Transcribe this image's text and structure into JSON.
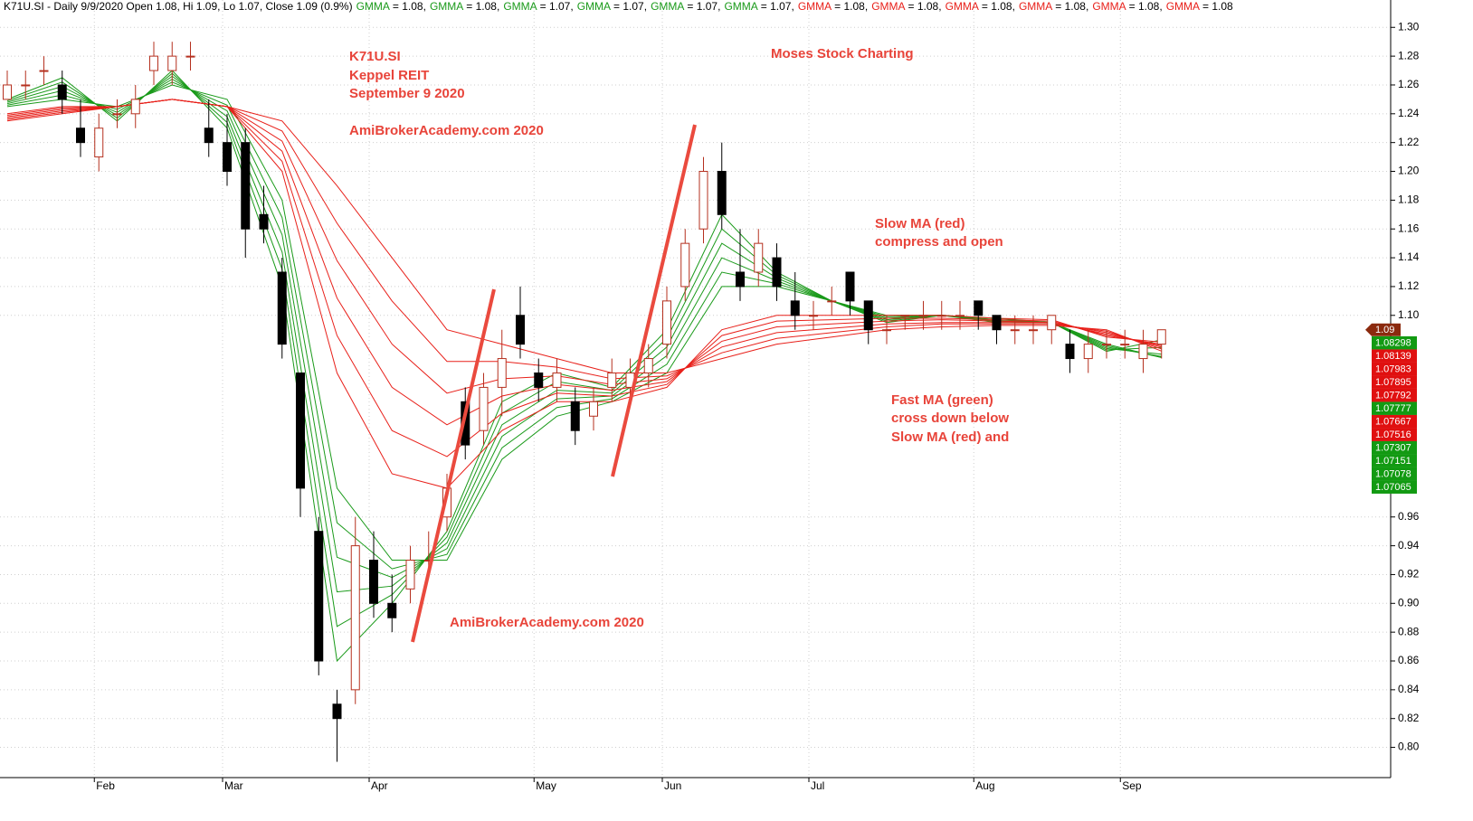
{
  "chart_data": {
    "type": "candlestick",
    "title": "K71U.SI - Daily 9/9/2020 Open 1.08, Hi 1.09, Lo 1.07, Close 1.09 (0.9%)",
    "annotations": [
      "K71U.SI",
      "Keppel REIT",
      "September 9 2020",
      "AmiBrokerAcademy.com  2020",
      "Moses Stock Charting",
      "Slow MA (red)",
      "compress and open",
      "Fast MA (green)",
      "cross down below",
      "Slow MA (red) and",
      "AmiBrokerAcademy.com 2020"
    ],
    "annotation_color": "#e8443a",
    "up_color": "#b5301f",
    "down_color": "#000000",
    "grid": true,
    "ylim": [
      0.779,
      1.319
    ],
    "yticks": [
      {
        "value": 0.8,
        "label": "0.80"
      },
      {
        "value": 0.82,
        "label": "0.82"
      },
      {
        "value": 0.84,
        "label": "0.84"
      },
      {
        "value": 0.86,
        "label": "0.86"
      },
      {
        "value": 0.88,
        "label": "0.88"
      },
      {
        "value": 0.9,
        "label": "0.90"
      },
      {
        "value": 0.92,
        "label": "0.92"
      },
      {
        "value": 0.94,
        "label": "0.94"
      },
      {
        "value": 0.96,
        "label": "0.96"
      },
      {
        "value": 1.1,
        "label": "1.10"
      },
      {
        "value": 1.12,
        "label": "1.12"
      },
      {
        "value": 1.14,
        "label": "1.14"
      },
      {
        "value": 1.16,
        "label": "1.16"
      },
      {
        "value": 1.18,
        "label": "1.18"
      },
      {
        "value": 1.2,
        "label": "1.20"
      },
      {
        "value": 1.22,
        "label": "1.22"
      },
      {
        "value": 1.24,
        "label": "1.24"
      },
      {
        "value": 1.26,
        "label": "1.26"
      },
      {
        "value": 1.28,
        "label": "1.28"
      },
      {
        "value": 1.3,
        "label": "1.30"
      }
    ],
    "categories": [
      null,
      null,
      null,
      null,
      null,
      "Feb",
      null,
      null,
      null,
      null,
      null,
      null,
      "Mar",
      null,
      null,
      null,
      null,
      null,
      null,
      null,
      "Apr",
      null,
      null,
      null,
      null,
      null,
      null,
      null,
      null,
      "May",
      null,
      null,
      null,
      null,
      null,
      null,
      "Jun",
      null,
      null,
      null,
      null,
      null,
      null,
      null,
      "Jul",
      null,
      null,
      null,
      null,
      null,
      null,
      null,
      null,
      "Aug",
      null,
      null,
      null,
      null,
      null,
      null,
      null,
      "Sep",
      null,
      null
    ],
    "ohlc": [
      [
        1.25,
        1.27,
        1.25,
        1.26
      ],
      [
        1.26,
        1.27,
        1.25,
        1.26
      ],
      [
        1.27,
        1.28,
        1.26,
        1.27
      ],
      [
        1.26,
        1.27,
        1.24,
        1.25
      ],
      [
        1.23,
        1.25,
        1.21,
        1.22
      ],
      [
        1.21,
        1.24,
        1.2,
        1.23
      ],
      [
        1.24,
        1.25,
        1.23,
        1.24
      ],
      [
        1.24,
        1.26,
        1.23,
        1.25
      ],
      [
        1.27,
        1.29,
        1.26,
        1.28
      ],
      [
        1.27,
        1.29,
        1.26,
        1.28
      ],
      [
        1.28,
        1.29,
        1.27,
        1.28
      ],
      [
        1.23,
        1.25,
        1.21,
        1.22
      ],
      [
        1.22,
        1.24,
        1.19,
        1.2
      ],
      [
        1.22,
        1.23,
        1.14,
        1.16
      ],
      [
        1.17,
        1.19,
        1.15,
        1.16
      ],
      [
        1.13,
        1.14,
        1.07,
        1.08
      ],
      [
        1.06,
        1.06,
        0.96,
        0.98
      ],
      [
        0.95,
        0.96,
        0.85,
        0.86
      ],
      [
        0.83,
        0.84,
        0.79,
        0.82
      ],
      [
        0.84,
        0.96,
        0.83,
        0.94
      ],
      [
        0.93,
        0.95,
        0.89,
        0.9
      ],
      [
        0.9,
        0.92,
        0.88,
        0.89
      ],
      [
        0.91,
        0.94,
        0.9,
        0.93
      ],
      [
        0.93,
        0.95,
        0.92,
        0.93
      ],
      [
        0.96,
        0.99,
        0.95,
        0.98
      ],
      [
        1.04,
        1.05,
        1.0,
        1.01
      ],
      [
        1.02,
        1.06,
        1.01,
        1.05
      ],
      [
        1.05,
        1.09,
        1.03,
        1.07
      ],
      [
        1.1,
        1.12,
        1.07,
        1.08
      ],
      [
        1.06,
        1.07,
        1.04,
        1.05
      ],
      [
        1.05,
        1.07,
        1.04,
        1.06
      ],
      [
        1.04,
        1.05,
        1.01,
        1.02
      ],
      [
        1.03,
        1.05,
        1.02,
        1.04
      ],
      [
        1.05,
        1.07,
        1.04,
        1.06
      ],
      [
        1.05,
        1.07,
        1.04,
        1.06
      ],
      [
        1.06,
        1.08,
        1.05,
        1.07
      ],
      [
        1.08,
        1.12,
        1.07,
        1.11
      ],
      [
        1.12,
        1.16,
        1.11,
        1.15
      ],
      [
        1.16,
        1.21,
        1.15,
        1.2
      ],
      [
        1.2,
        1.22,
        1.16,
        1.17
      ],
      [
        1.13,
        1.16,
        1.11,
        1.12
      ],
      [
        1.13,
        1.16,
        1.12,
        1.15
      ],
      [
        1.14,
        1.15,
        1.11,
        1.12
      ],
      [
        1.11,
        1.13,
        1.09,
        1.1
      ],
      [
        1.1,
        1.11,
        1.09,
        1.1
      ],
      [
        1.11,
        1.12,
        1.1,
        1.11
      ],
      [
        1.13,
        1.13,
        1.1,
        1.11
      ],
      [
        1.11,
        1.11,
        1.08,
        1.09
      ],
      [
        1.09,
        1.1,
        1.08,
        1.09
      ],
      [
        1.1,
        1.1,
        1.09,
        1.1
      ],
      [
        1.1,
        1.11,
        1.09,
        1.1
      ],
      [
        1.1,
        1.11,
        1.09,
        1.1
      ],
      [
        1.1,
        1.11,
        1.09,
        1.1
      ],
      [
        1.11,
        1.11,
        1.09,
        1.1
      ],
      [
        1.1,
        1.1,
        1.08,
        1.09
      ],
      [
        1.09,
        1.1,
        1.08,
        1.09
      ],
      [
        1.09,
        1.1,
        1.08,
        1.09
      ],
      [
        1.09,
        1.1,
        1.08,
        1.1
      ],
      [
        1.08,
        1.09,
        1.06,
        1.07
      ],
      [
        1.07,
        1.09,
        1.06,
        1.08
      ],
      [
        1.08,
        1.09,
        1.07,
        1.08
      ],
      [
        1.08,
        1.09,
        1.07,
        1.08
      ],
      [
        1.07,
        1.09,
        1.06,
        1.08
      ],
      [
        1.08,
        1.09,
        1.07,
        1.09
      ]
    ],
    "series": [
      {
        "name": "GMMA",
        "legend_label": "= 1.08,",
        "color": "#1a9a1a",
        "x": [
          0,
          3,
          6,
          9,
          12,
          15,
          18,
          21,
          24,
          27,
          30,
          33,
          36,
          39,
          42,
          45,
          48,
          51,
          54,
          57,
          60,
          63
        ],
        "values": [
          1.25,
          1.265,
          1.235,
          1.27,
          1.23,
          1.12,
          0.86,
          0.9,
          0.95,
          1.04,
          1.06,
          1.05,
          1.09,
          1.17,
          1.13,
          1.11,
          1.095,
          1.1,
          1.095,
          1.095,
          1.075,
          1.08298
        ]
      },
      {
        "name": "GMMA",
        "legend_label": "= 1.08,",
        "color": "#1a9a1a",
        "x": [
          0,
          3,
          6,
          9,
          12,
          15,
          18,
          21,
          24,
          27,
          30,
          33,
          36,
          39,
          42,
          45,
          48,
          51,
          54,
          57,
          60,
          63
        ],
        "values": [
          1.249,
          1.262,
          1.237,
          1.268,
          1.234,
          1.132,
          0.884,
          0.906,
          0.946,
          1.032,
          1.054,
          1.048,
          1.084,
          1.16,
          1.128,
          1.11,
          1.096,
          1.1,
          1.096,
          1.095,
          1.076,
          1.07777
        ]
      },
      {
        "name": "GMMA",
        "legend_label": "= 1.07,",
        "color": "#1a9a1a",
        "x": [
          0,
          3,
          6,
          9,
          12,
          15,
          18,
          21,
          24,
          27,
          30,
          33,
          36,
          39,
          42,
          45,
          48,
          51,
          54,
          57,
          60,
          63
        ],
        "values": [
          1.248,
          1.259,
          1.239,
          1.266,
          1.238,
          1.144,
          0.908,
          0.912,
          0.942,
          1.024,
          1.048,
          1.046,
          1.078,
          1.15,
          1.126,
          1.11,
          1.097,
          1.1,
          1.096,
          1.095,
          1.077,
          1.07307
        ]
      },
      {
        "name": "GMMA",
        "legend_label": "= 1.07,",
        "color": "#1a9a1a",
        "x": [
          0,
          3,
          6,
          9,
          12,
          15,
          18,
          21,
          24,
          27,
          30,
          33,
          36,
          39,
          42,
          45,
          48,
          51,
          54,
          57,
          60,
          63
        ],
        "values": [
          1.247,
          1.256,
          1.241,
          1.264,
          1.242,
          1.156,
          0.932,
          0.918,
          0.938,
          1.016,
          1.042,
          1.044,
          1.072,
          1.14,
          1.124,
          1.11,
          1.098,
          1.1,
          1.097,
          1.095,
          1.078,
          1.07151
        ]
      },
      {
        "name": "GMMA",
        "legend_label": "= 1.07,",
        "color": "#1a9a1a",
        "x": [
          0,
          3,
          6,
          9,
          12,
          15,
          18,
          21,
          24,
          27,
          30,
          33,
          36,
          39,
          42,
          45,
          48,
          51,
          54,
          57,
          60,
          63
        ],
        "values": [
          1.246,
          1.253,
          1.243,
          1.262,
          1.246,
          1.168,
          0.956,
          0.924,
          0.934,
          1.008,
          1.036,
          1.042,
          1.066,
          1.13,
          1.122,
          1.11,
          1.099,
          1.1,
          1.097,
          1.095,
          1.079,
          1.07078
        ]
      },
      {
        "name": "GMMA",
        "legend_label": "= 1.07,",
        "color": "#1a9a1a",
        "x": [
          0,
          3,
          6,
          9,
          12,
          15,
          18,
          21,
          24,
          27,
          30,
          33,
          36,
          39,
          42,
          45,
          48,
          51,
          54,
          57,
          60,
          63
        ],
        "values": [
          1.245,
          1.25,
          1.245,
          1.26,
          1.25,
          1.18,
          0.98,
          0.93,
          0.93,
          1.0,
          1.03,
          1.04,
          1.06,
          1.12,
          1.12,
          1.11,
          1.1,
          1.1,
          1.098,
          1.095,
          1.08,
          1.07065
        ]
      },
      {
        "name": "GMMA",
        "legend_label": "= 1.08,",
        "color": "#e8201a",
        "x": [
          0,
          3,
          6,
          9,
          12,
          15,
          18,
          21,
          24,
          27,
          30,
          33,
          36,
          39,
          42,
          45,
          48,
          51,
          54,
          57,
          60,
          63
        ],
        "values": [
          1.24,
          1.245,
          1.245,
          1.25,
          1.245,
          1.2,
          1.06,
          0.99,
          0.98,
          1.02,
          1.04,
          1.04,
          1.05,
          1.09,
          1.1,
          1.1,
          1.1,
          1.1,
          1.098,
          1.097,
          1.085,
          1.08139
        ]
      },
      {
        "name": "GMMA",
        "legend_label": "= 1.08,",
        "color": "#e8201a",
        "x": [
          0,
          3,
          6,
          9,
          12,
          15,
          18,
          21,
          24,
          27,
          30,
          33,
          36,
          39,
          42,
          45,
          48,
          51,
          54,
          57,
          60,
          63
        ],
        "values": [
          1.239,
          1.244,
          1.245,
          1.25,
          1.245,
          1.207,
          1.086,
          1.02,
          1.002,
          1.032,
          1.046,
          1.044,
          1.052,
          1.086,
          1.096,
          1.097,
          1.098,
          1.098,
          1.097,
          1.096,
          1.086,
          1.07983
        ]
      },
      {
        "name": "GMMA",
        "legend_label": "= 1.08,",
        "color": "#e8201a",
        "x": [
          0,
          3,
          6,
          9,
          12,
          15,
          18,
          21,
          24,
          27,
          30,
          33,
          36,
          39,
          42,
          45,
          48,
          51,
          54,
          57,
          60,
          63
        ],
        "values": [
          1.238,
          1.243,
          1.245,
          1.25,
          1.245,
          1.214,
          1.112,
          1.05,
          1.024,
          1.044,
          1.052,
          1.048,
          1.054,
          1.082,
          1.092,
          1.094,
          1.096,
          1.097,
          1.096,
          1.095,
          1.087,
          1.07895
        ]
      },
      {
        "name": "GMMA",
        "legend_label": "= 1.08,",
        "color": "#e8201a",
        "x": [
          0,
          3,
          6,
          9,
          12,
          15,
          18,
          21,
          24,
          27,
          30,
          33,
          36,
          39,
          42,
          45,
          48,
          51,
          54,
          57,
          60,
          63
        ],
        "values": [
          1.237,
          1.242,
          1.245,
          1.25,
          1.245,
          1.221,
          1.138,
          1.08,
          1.046,
          1.056,
          1.058,
          1.052,
          1.056,
          1.078,
          1.088,
          1.091,
          1.094,
          1.095,
          1.095,
          1.095,
          1.088,
          1.07792
        ]
      },
      {
        "name": "GMMA",
        "legend_label": "= 1.08,",
        "color": "#e8201a",
        "x": [
          0,
          3,
          6,
          9,
          12,
          15,
          18,
          21,
          24,
          27,
          30,
          33,
          36,
          39,
          42,
          45,
          48,
          51,
          54,
          57,
          60,
          63
        ],
        "values": [
          1.236,
          1.241,
          1.245,
          1.25,
          1.245,
          1.228,
          1.164,
          1.11,
          1.068,
          1.068,
          1.064,
          1.056,
          1.058,
          1.074,
          1.084,
          1.088,
          1.092,
          1.094,
          1.094,
          1.094,
          1.089,
          1.07667
        ]
      },
      {
        "name": "GMMA",
        "legend_label": "= 1.08",
        "color": "#e8201a",
        "x": [
          0,
          3,
          6,
          9,
          12,
          15,
          18,
          21,
          24,
          27,
          30,
          33,
          36,
          39,
          42,
          45,
          48,
          51,
          54,
          57,
          60,
          63
        ],
        "values": [
          1.235,
          1.24,
          1.245,
          1.25,
          1.245,
          1.235,
          1.19,
          1.14,
          1.09,
          1.08,
          1.07,
          1.06,
          1.06,
          1.07,
          1.08,
          1.085,
          1.09,
          1.092,
          1.093,
          1.093,
          1.09,
          1.07516
        ]
      }
    ],
    "price_tags": [
      {
        "value": 1.09,
        "color": "#8b2a0e"
      },
      {
        "value": 1.08298,
        "color": "#129a12"
      },
      {
        "value": 1.08139,
        "color": "#e01010"
      },
      {
        "value": 1.07983,
        "color": "#e01010"
      },
      {
        "value": 1.07895,
        "color": "#e01010"
      },
      {
        "value": 1.07792,
        "color": "#e01010"
      },
      {
        "value": 1.07777,
        "color": "#129a12"
      },
      {
        "value": 1.07667,
        "color": "#e01010"
      },
      {
        "value": 1.07516,
        "color": "#e01010"
      },
      {
        "value": 1.07307,
        "color": "#129a12"
      },
      {
        "value": 1.07151,
        "color": "#129a12"
      },
      {
        "value": 1.07078,
        "color": "#129a12"
      },
      {
        "value": 1.07065,
        "color": "#129a12"
      }
    ]
  }
}
